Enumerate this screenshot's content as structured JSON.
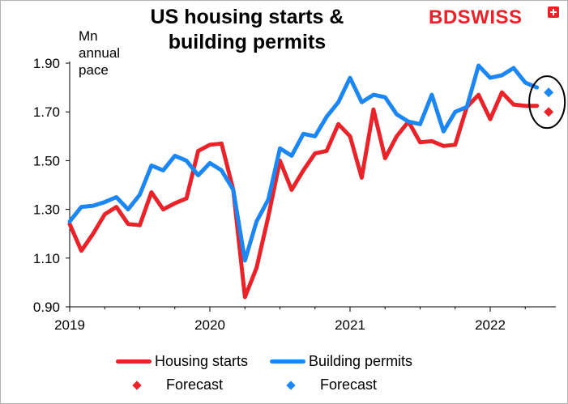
{
  "header": {
    "title": "US housing starts &\nbuilding permits",
    "logo_part1": "BD",
    "logo_part2": "SWISS",
    "y_unit": "Mn\nannual\npace"
  },
  "colors": {
    "housing_starts": "#e8242a",
    "building_permits": "#1c86f2",
    "axis": "#000000"
  },
  "chart_data": {
    "type": "line",
    "title": "US housing starts & building permits",
    "ylabel": "Mn annual pace",
    "xlabel": "",
    "ylim": [
      0.9,
      1.9
    ],
    "yticks": [
      "0.90",
      "1.10",
      "1.30",
      "1.50",
      "1.70",
      "1.90"
    ],
    "ytick_values": [
      0.9,
      1.1,
      1.3,
      1.5,
      1.7,
      1.9
    ],
    "xticks": [
      "2019",
      "2020",
      "2021",
      "2022"
    ],
    "xtick_values": [
      2019,
      2020,
      2021,
      2022
    ],
    "xlim": [
      2019.0,
      2022.5
    ],
    "grid": false,
    "legend_position": "bottom",
    "series": [
      {
        "name": "Housing starts",
        "type": "line",
        "x": [
          2019.0,
          2019.083,
          2019.167,
          2019.25,
          2019.333,
          2019.417,
          2019.5,
          2019.583,
          2019.667,
          2019.75,
          2019.833,
          2019.917,
          2020.0,
          2020.083,
          2020.167,
          2020.25,
          2020.333,
          2020.417,
          2020.5,
          2020.583,
          2020.667,
          2020.75,
          2020.833,
          2020.917,
          2021.0,
          2021.083,
          2021.167,
          2021.25,
          2021.333,
          2021.417,
          2021.5,
          2021.583,
          2021.667,
          2021.75,
          2021.833,
          2021.917,
          2022.0,
          2022.083,
          2022.167,
          2022.25,
          2022.333
        ],
        "values": [
          1.24,
          1.13,
          1.2,
          1.28,
          1.31,
          1.24,
          1.235,
          1.37,
          1.3,
          1.325,
          1.345,
          1.54,
          1.565,
          1.57,
          1.38,
          0.94,
          1.06,
          1.27,
          1.5,
          1.38,
          1.46,
          1.53,
          1.54,
          1.65,
          1.6,
          1.43,
          1.71,
          1.51,
          1.6,
          1.66,
          1.575,
          1.58,
          1.56,
          1.565,
          1.72,
          1.77,
          1.67,
          1.78,
          1.73,
          1.725,
          1.725
        ]
      },
      {
        "name": "Building permits",
        "type": "line",
        "x": [
          2019.0,
          2019.083,
          2019.167,
          2019.25,
          2019.333,
          2019.417,
          2019.5,
          2019.583,
          2019.667,
          2019.75,
          2019.833,
          2019.917,
          2020.0,
          2020.083,
          2020.167,
          2020.25,
          2020.333,
          2020.417,
          2020.5,
          2020.583,
          2020.667,
          2020.75,
          2020.833,
          2020.917,
          2021.0,
          2021.083,
          2021.167,
          2021.25,
          2021.333,
          2021.417,
          2021.5,
          2021.583,
          2021.667,
          2021.75,
          2021.833,
          2021.917,
          2022.0,
          2022.083,
          2022.167,
          2022.25,
          2022.333
        ],
        "values": [
          1.25,
          1.31,
          1.315,
          1.33,
          1.35,
          1.3,
          1.36,
          1.48,
          1.46,
          1.52,
          1.5,
          1.44,
          1.49,
          1.46,
          1.38,
          1.09,
          1.25,
          1.34,
          1.55,
          1.52,
          1.61,
          1.6,
          1.68,
          1.74,
          1.84,
          1.74,
          1.77,
          1.76,
          1.69,
          1.66,
          1.65,
          1.77,
          1.62,
          1.7,
          1.72,
          1.89,
          1.84,
          1.85,
          1.88,
          1.82,
          1.8
        ]
      },
      {
        "name": "Forecast",
        "type": "scatter",
        "marker": "diamond",
        "color_key": "housing_starts",
        "x": [
          2022.417
        ],
        "values": [
          1.7
        ]
      },
      {
        "name": "Forecast",
        "type": "scatter",
        "marker": "diamond",
        "color_key": "building_permits",
        "x": [
          2022.417
        ],
        "values": [
          1.78
        ]
      }
    ],
    "annotations": [
      {
        "type": "ellipse",
        "around": "forecast points",
        "color": "#000000"
      }
    ]
  },
  "legend": [
    {
      "label": "Housing starts",
      "kind": "line",
      "color_key": "housing_starts"
    },
    {
      "label": "Building permits",
      "kind": "line",
      "color_key": "building_permits"
    },
    {
      "label": "Forecast",
      "kind": "diamond",
      "color_key": "housing_starts"
    },
    {
      "label": "Forecast",
      "kind": "diamond",
      "color_key": "building_permits"
    }
  ]
}
